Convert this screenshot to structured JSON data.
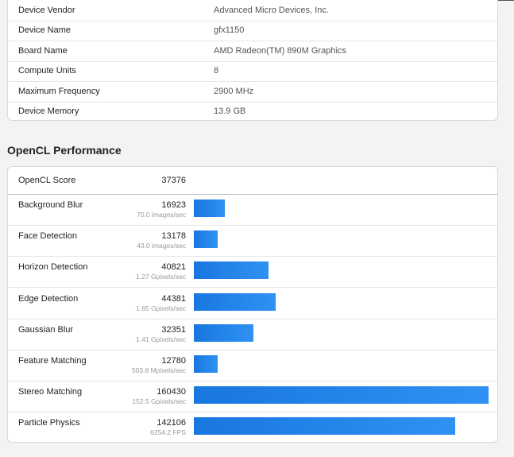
{
  "device_info": {
    "rows": [
      {
        "label": "Device Vendor",
        "value": "Advanced Micro Devices, Inc."
      },
      {
        "label": "Device Name",
        "value": "gfx1150"
      },
      {
        "label": "Board Name",
        "value": "AMD Radeon(TM) 890M Graphics"
      },
      {
        "label": "Compute Units",
        "value": "8"
      },
      {
        "label": "Maximum Frequency",
        "value": "2900 MHz"
      },
      {
        "label": "Device Memory",
        "value": "13.9 GB"
      }
    ]
  },
  "performance": {
    "title": "OpenCL Performance",
    "score_label": "OpenCL Score",
    "score": 37376,
    "rows": [
      {
        "name": "Background Blur",
        "score": 16923,
        "rate": "70.0 images/sec"
      },
      {
        "name": "Face Detection",
        "score": 13178,
        "rate": "43.0 images/sec"
      },
      {
        "name": "Horizon Detection",
        "score": 40821,
        "rate": "1.27 Gpixels/sec"
      },
      {
        "name": "Edge Detection",
        "score": 44381,
        "rate": "1.65 Gpixels/sec"
      },
      {
        "name": "Gaussian Blur",
        "score": 32351,
        "rate": "1.41 Gpixels/sec"
      },
      {
        "name": "Feature Matching",
        "score": 12780,
        "rate": "503.8 Mpixels/sec"
      },
      {
        "name": "Stereo Matching",
        "score": 160430,
        "rate": "152.5 Gpixels/sec"
      },
      {
        "name": "Particle Physics",
        "score": 142106,
        "rate": "6254.2 FPS"
      }
    ]
  }
}
